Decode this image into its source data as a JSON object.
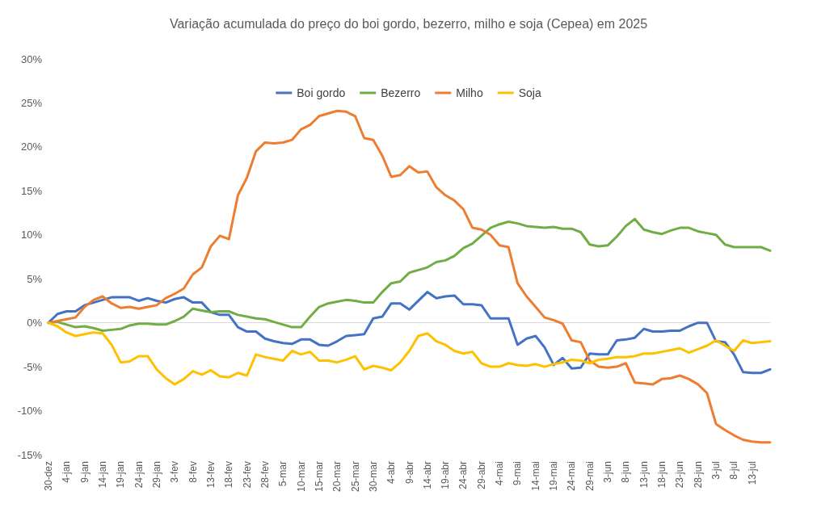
{
  "chart_data": {
    "type": "line",
    "title": "Variação acumulada do preço do boi gordo, bezerro, milho e soja (Cepea) em 2025",
    "categories": [
      "30-dez",
      null,
      "4-jan",
      null,
      "9-jan",
      null,
      "14-jan",
      null,
      "19-jan",
      null,
      "24-jan",
      null,
      "29-jan",
      null,
      "3-fev",
      null,
      "8-fev",
      null,
      "13-fev",
      null,
      "18-fev",
      null,
      "23-fev",
      null,
      "28-fev",
      null,
      "5-mar",
      null,
      "10-mar",
      null,
      "15-mar",
      null,
      "20-mar",
      null,
      "25-mar",
      null,
      "30-mar",
      null,
      "4-abr",
      null,
      "9-abr",
      null,
      "14-abr",
      null,
      "19-abr",
      null,
      "24-abr",
      null,
      "29-abr",
      null,
      "4-mai",
      null,
      "9-mai",
      null,
      "14-mai",
      null,
      "19-mai",
      null,
      "24-mai",
      null,
      "29-mai",
      null,
      "3-jun",
      null,
      "8-jun",
      null,
      "13-jun",
      null,
      "18-jun",
      null,
      "23-jun",
      null,
      "28-jun",
      null,
      "3-jul",
      null,
      "8-jul",
      null,
      "13-jul",
      null,
      null
    ],
    "series": [
      {
        "name": "Boi gordo",
        "color": "#4472c4",
        "values": [
          0,
          1.0,
          1.3,
          1.3,
          2.0,
          2.3,
          2.6,
          2.9,
          2.9,
          2.9,
          2.5,
          2.8,
          2.5,
          2.3,
          2.7,
          2.9,
          2.3,
          2.3,
          1.2,
          0.9,
          0.9,
          -0.5,
          -1.0,
          -1.0,
          -1.8,
          -2.1,
          -2.3,
          -2.4,
          -1.9,
          -1.9,
          -2.5,
          -2.6,
          -2.1,
          -1.5,
          -1.4,
          -1.3,
          0.5,
          0.7,
          2.2,
          2.2,
          1.5,
          2.5,
          3.5,
          2.8,
          3.0,
          3.1,
          2.1,
          2.1,
          2.0,
          0.5,
          0.5,
          0.5,
          -2.5,
          -1.8,
          -1.5,
          -2.8,
          -4.8,
          -4.0,
          -5.2,
          -5.1,
          -3.5,
          -3.6,
          -3.6,
          -2.0,
          -1.9,
          -1.7,
          -0.7,
          -1.0,
          -1.0,
          -0.9,
          -0.9,
          -0.4,
          0.0,
          0.0,
          -2.1,
          -2.2,
          -3.6,
          -5.6,
          -5.7,
          -5.7,
          -5.3
        ]
      },
      {
        "name": "Bezerro",
        "color": "#70ad47",
        "values": [
          0,
          0.1,
          -0.2,
          -0.5,
          -0.4,
          -0.6,
          -0.9,
          -0.8,
          -0.7,
          -0.3,
          -0.1,
          -0.1,
          -0.2,
          -0.2,
          0.2,
          0.7,
          1.6,
          1.4,
          1.2,
          1.3,
          1.3,
          0.9,
          0.7,
          0.5,
          0.4,
          0.1,
          -0.2,
          -0.5,
          -0.5,
          0.7,
          1.8,
          2.2,
          2.4,
          2.6,
          2.5,
          2.3,
          2.3,
          3.5,
          4.5,
          4.7,
          5.7,
          6.0,
          6.3,
          6.9,
          7.1,
          7.6,
          8.5,
          9.0,
          9.9,
          10.8,
          11.2,
          11.5,
          11.3,
          11.0,
          10.9,
          10.8,
          10.9,
          10.7,
          10.7,
          10.3,
          8.9,
          8.7,
          8.8,
          9.8,
          11.0,
          11.8,
          10.6,
          10.3,
          10.1,
          10.5,
          10.8,
          10.8,
          10.4,
          10.2,
          10.0,
          8.9,
          8.6,
          8.6,
          8.6,
          8.6,
          8.2
        ]
      },
      {
        "name": "Milho",
        "color": "#ed7d31",
        "values": [
          0,
          0.2,
          0.4,
          0.6,
          1.8,
          2.6,
          3.0,
          2.2,
          1.7,
          1.8,
          1.6,
          1.8,
          2.0,
          2.8,
          3.3,
          3.9,
          5.5,
          6.3,
          8.7,
          9.9,
          9.5,
          14.5,
          16.5,
          19.5,
          20.5,
          20.4,
          20.5,
          20.8,
          22.0,
          22.5,
          23.5,
          23.8,
          24.1,
          24.0,
          23.5,
          21.0,
          20.8,
          19.0,
          16.6,
          16.8,
          17.8,
          17.1,
          17.2,
          15.4,
          14.5,
          13.9,
          12.9,
          10.8,
          10.6,
          10.0,
          8.8,
          8.6,
          4.5,
          3.0,
          1.8,
          0.6,
          0.3,
          -0.1,
          -2.0,
          -2.2,
          -4.3,
          -5.0,
          -5.1,
          -5.0,
          -4.6,
          -6.8,
          -6.9,
          -7.0,
          -6.4,
          -6.3,
          -6.0,
          -6.4,
          -7.0,
          -8.0,
          -11.5,
          -12.2,
          -12.8,
          -13.3,
          -13.5,
          -13.6,
          -13.6
        ]
      },
      {
        "name": "Soja",
        "color": "#ffc000",
        "values": [
          0,
          -0.4,
          -1.1,
          -1.5,
          -1.3,
          -1.1,
          -1.2,
          -2.5,
          -4.5,
          -4.4,
          -3.8,
          -3.8,
          -5.3,
          -6.3,
          -7.0,
          -6.4,
          -5.5,
          -5.9,
          -5.4,
          -6.1,
          -6.2,
          -5.7,
          -6.0,
          -3.6,
          -3.9,
          -4.1,
          -4.3,
          -3.2,
          -3.6,
          -3.3,
          -4.3,
          -4.3,
          -4.5,
          -4.2,
          -3.8,
          -5.3,
          -4.9,
          -5.1,
          -5.4,
          -4.5,
          -3.2,
          -1.5,
          -1.2,
          -2.1,
          -2.5,
          -3.2,
          -3.5,
          -3.3,
          -4.6,
          -5.0,
          -5.0,
          -4.6,
          -4.8,
          -4.9,
          -4.7,
          -5.0,
          -4.7,
          -4.5,
          -4.2,
          -4.3,
          -4.6,
          -4.2,
          -4.1,
          -3.9,
          -3.9,
          -3.8,
          -3.5,
          -3.5,
          -3.3,
          -3.1,
          -2.9,
          -3.4,
          -3.0,
          -2.6,
          -2.0,
          -2.6,
          -3.2,
          -2.0,
          -2.3,
          -2.2,
          -2.1
        ]
      }
    ],
    "ylim": [
      -15,
      30
    ],
    "yticks": [
      {
        "value": -15,
        "label": "-15%"
      },
      {
        "value": -10,
        "label": "-10%"
      },
      {
        "value": -5,
        "label": "-5%"
      },
      {
        "value": 0,
        "label": "0%"
      },
      {
        "value": 5,
        "label": "5%"
      },
      {
        "value": 10,
        "label": "10%"
      },
      {
        "value": 15,
        "label": "15%"
      },
      {
        "value": 20,
        "label": "20%"
      },
      {
        "value": 25,
        "label": "25%"
      },
      {
        "value": 30,
        "label": "30%"
      }
    ],
    "ref_lines": [
      {
        "axis": "y",
        "value": 0,
        "label": null,
        "color": "#d9d9d9"
      }
    ],
    "grid": false,
    "legend": "top",
    "marker": "none",
    "line_style": "solid"
  }
}
